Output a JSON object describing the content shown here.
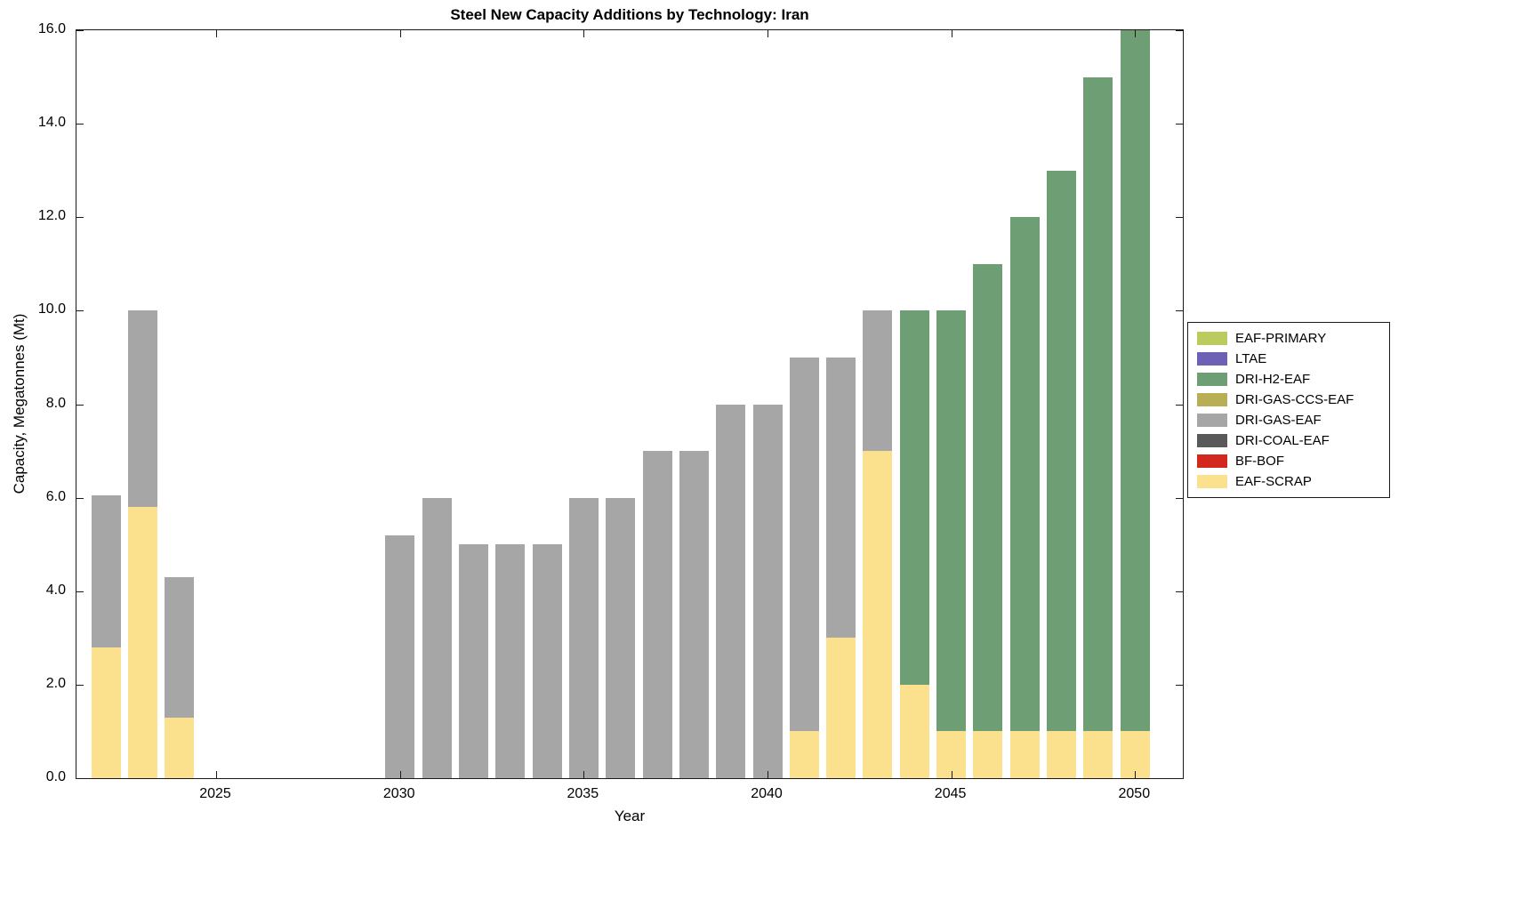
{
  "chart_data": {
    "type": "bar",
    "stacked": true,
    "title": "Steel New Capacity Additions by Technology: Iran",
    "xlabel": "Year",
    "ylabel": "Capacity, Megatonnes (Mt)",
    "xlim": [
      2021.2,
      2051.3
    ],
    "ylim": [
      0,
      16
    ],
    "x_ticks": [
      2025,
      2030,
      2035,
      2040,
      2045,
      2050
    ],
    "y_ticks": [
      0,
      2,
      4,
      6,
      8,
      10,
      12,
      14,
      16
    ],
    "bar_width": 0.8,
    "grid": false,
    "legend_position": "right-outside",
    "x": [
      2022,
      2023,
      2024,
      2025,
      2026,
      2027,
      2028,
      2029,
      2030,
      2031,
      2032,
      2033,
      2034,
      2035,
      2036,
      2037,
      2038,
      2039,
      2040,
      2041,
      2042,
      2043,
      2044,
      2045,
      2046,
      2047,
      2048,
      2049,
      2050
    ],
    "series": [
      {
        "name": "EAF-SCRAP",
        "color": "#FBE08D",
        "values": [
          2.8,
          5.8,
          1.3,
          0,
          0,
          0,
          0,
          0,
          0,
          0,
          0,
          0,
          0,
          0,
          0,
          0,
          0,
          0,
          0,
          1,
          3,
          7,
          2,
          1,
          1,
          1,
          1,
          1,
          1
        ]
      },
      {
        "name": "BF-BOF",
        "color": "#D3281E",
        "values": [
          0,
          0,
          0,
          0,
          0,
          0,
          0,
          0,
          0,
          0,
          0,
          0,
          0,
          0,
          0,
          0,
          0,
          0,
          0,
          0,
          0,
          0,
          0,
          0,
          0,
          0,
          0,
          0,
          0
        ]
      },
      {
        "name": "DRI-COAL-EAF",
        "color": "#595959",
        "values": [
          0,
          0,
          0,
          0,
          0,
          0,
          0,
          0,
          0,
          0,
          0,
          0,
          0,
          0,
          0,
          0,
          0,
          0,
          0,
          0,
          0,
          0,
          0,
          0,
          0,
          0,
          0,
          0,
          0
        ]
      },
      {
        "name": "DRI-GAS-EAF",
        "color": "#A6A6A6",
        "values": [
          3.25,
          4.2,
          3,
          0,
          0,
          0,
          0,
          0,
          5.2,
          6,
          5,
          5,
          5,
          6,
          6,
          7,
          7,
          8,
          8,
          8,
          6,
          3,
          0,
          0,
          0,
          0,
          0,
          0,
          0
        ]
      },
      {
        "name": "DRI-GAS-CCS-EAF",
        "color": "#B8AE54",
        "values": [
          0,
          0,
          0,
          0,
          0,
          0,
          0,
          0,
          0,
          0,
          0,
          0,
          0,
          0,
          0,
          0,
          0,
          0,
          0,
          0,
          0,
          0,
          0,
          0,
          0,
          0,
          0,
          0,
          0
        ]
      },
      {
        "name": "DRI-H2-EAF",
        "color": "#6E9E74",
        "values": [
          0,
          0,
          0,
          0,
          0,
          0,
          0,
          0,
          0,
          0,
          0,
          0,
          0,
          0,
          0,
          0,
          0,
          0,
          0,
          0,
          0,
          0,
          8,
          9,
          10,
          11,
          12,
          14,
          15
        ]
      },
      {
        "name": "LTAE",
        "color": "#6D61B5",
        "values": [
          0,
          0,
          0,
          0,
          0,
          0,
          0,
          0,
          0,
          0,
          0,
          0,
          0,
          0,
          0,
          0,
          0,
          0,
          0,
          0,
          0,
          0,
          0,
          0,
          0,
          0,
          0,
          0,
          0
        ]
      },
      {
        "name": "EAF-PRIMARY",
        "color": "#BCCB5D",
        "values": [
          0,
          0,
          0,
          0,
          0,
          0,
          0,
          0,
          0,
          0,
          0,
          0,
          0,
          0,
          0,
          0,
          0,
          0,
          0,
          0,
          0,
          0,
          0,
          0,
          0,
          0,
          0,
          0,
          0
        ]
      }
    ],
    "legend": [
      {
        "label": "EAF-PRIMARY",
        "color": "#BCCB5D"
      },
      {
        "label": "LTAE",
        "color": "#6D61B5"
      },
      {
        "label": "DRI-H2-EAF",
        "color": "#6E9E74"
      },
      {
        "label": "DRI-GAS-CCS-EAF",
        "color": "#B8AE54"
      },
      {
        "label": "DRI-GAS-EAF",
        "color": "#A6A6A6"
      },
      {
        "label": "DRI-COAL-EAF",
        "color": "#595959"
      },
      {
        "label": "BF-BOF",
        "color": "#D3281E"
      },
      {
        "label": "EAF-SCRAP",
        "color": "#FBE08D"
      }
    ]
  }
}
